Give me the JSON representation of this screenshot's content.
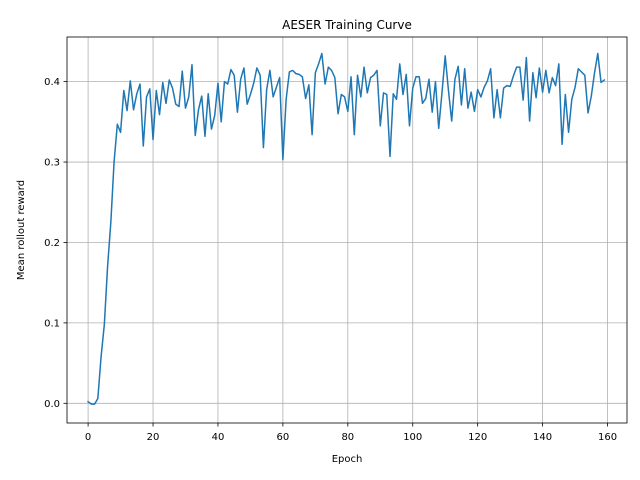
{
  "chart_data": {
    "type": "line",
    "title": "AESER Training Curve",
    "xlabel": "Epoch",
    "ylabel": "Mean rollout reward",
    "xlim": [
      -6.5,
      166
    ],
    "ylim": [
      -0.0245,
      0.4555
    ],
    "xticks": [
      0,
      20,
      40,
      60,
      80,
      100,
      120,
      140,
      160
    ],
    "yticks": [
      0.0,
      0.1,
      0.2,
      0.3,
      0.4
    ],
    "xtick_labels": [
      "0",
      "20",
      "40",
      "60",
      "80",
      "100",
      "120",
      "140",
      "160"
    ],
    "ytick_labels": [
      "0.0",
      "0.1",
      "0.2",
      "0.3",
      "0.4"
    ],
    "grid": true,
    "line_color": "#1f77b4",
    "series": [
      {
        "x": [
          0,
          1,
          2,
          3,
          4,
          5,
          6,
          7,
          8,
          9,
          10,
          11,
          12,
          13,
          14,
          15,
          16,
          17,
          18,
          19,
          20,
          21,
          22,
          23,
          24,
          25,
          26,
          27,
          28,
          29,
          30,
          31,
          32,
          33,
          34,
          35,
          36,
          37,
          38,
          39,
          40,
          41,
          42,
          43,
          44,
          45,
          46,
          47,
          48,
          49,
          50,
          51,
          52,
          53,
          54,
          55,
          56,
          57,
          58,
          59,
          60,
          61,
          62,
          63,
          64,
          65,
          66,
          67,
          68,
          69,
          70,
          71,
          72,
          73,
          74,
          75,
          76,
          77,
          78,
          79,
          80,
          81,
          82,
          83,
          84,
          85,
          86,
          87,
          88,
          89,
          90,
          91,
          92,
          93,
          94,
          95,
          96,
          97,
          98,
          99,
          100,
          101,
          102,
          103,
          104,
          105,
          106,
          107,
          108,
          109,
          110,
          111,
          112,
          113,
          114,
          115,
          116,
          117,
          118,
          119,
          120,
          121,
          122,
          123,
          124,
          125,
          126,
          127,
          128,
          129,
          130,
          131,
          132,
          133,
          134,
          135,
          136,
          137,
          138,
          139,
          140,
          141,
          142,
          143,
          144,
          145,
          146,
          147,
          148,
          149,
          150,
          151,
          152,
          153,
          154,
          155,
          156,
          157,
          158,
          159
        ],
        "values": [
          0.002,
          -0.001,
          -0.001,
          0.006,
          0.058,
          0.098,
          0.17,
          0.225,
          0.3,
          0.347,
          0.337,
          0.389,
          0.364,
          0.401,
          0.365,
          0.385,
          0.397,
          0.32,
          0.381,
          0.391,
          0.328,
          0.389,
          0.359,
          0.399,
          0.373,
          0.402,
          0.392,
          0.372,
          0.369,
          0.413,
          0.367,
          0.381,
          0.421,
          0.333,
          0.365,
          0.382,
          0.332,
          0.385,
          0.341,
          0.358,
          0.398,
          0.35,
          0.4,
          0.397,
          0.415,
          0.408,
          0.362,
          0.403,
          0.417,
          0.372,
          0.384,
          0.398,
          0.417,
          0.408,
          0.318,
          0.39,
          0.414,
          0.381,
          0.393,
          0.405,
          0.303,
          0.378,
          0.412,
          0.414,
          0.41,
          0.409,
          0.406,
          0.379,
          0.396,
          0.334,
          0.411,
          0.422,
          0.435,
          0.397,
          0.418,
          0.414,
          0.405,
          0.36,
          0.384,
          0.381,
          0.363,
          0.406,
          0.334,
          0.408,
          0.381,
          0.418,
          0.386,
          0.405,
          0.408,
          0.414,
          0.345,
          0.386,
          0.384,
          0.307,
          0.385,
          0.378,
          0.422,
          0.384,
          0.409,
          0.345,
          0.392,
          0.406,
          0.406,
          0.373,
          0.379,
          0.403,
          0.362,
          0.4,
          0.342,
          0.386,
          0.432,
          0.389,
          0.351,
          0.403,
          0.419,
          0.371,
          0.416,
          0.367,
          0.387,
          0.363,
          0.39,
          0.381,
          0.393,
          0.401,
          0.416,
          0.355,
          0.39,
          0.355,
          0.392,
          0.395,
          0.394,
          0.407,
          0.418,
          0.418,
          0.377,
          0.43,
          0.351,
          0.411,
          0.38,
          0.417,
          0.387,
          0.414,
          0.386,
          0.405,
          0.395,
          0.422,
          0.322,
          0.384,
          0.337,
          0.378,
          0.393,
          0.416,
          0.412,
          0.408,
          0.361,
          0.382,
          0.411,
          0.435,
          0.399,
          0.402
        ]
      }
    ]
  }
}
